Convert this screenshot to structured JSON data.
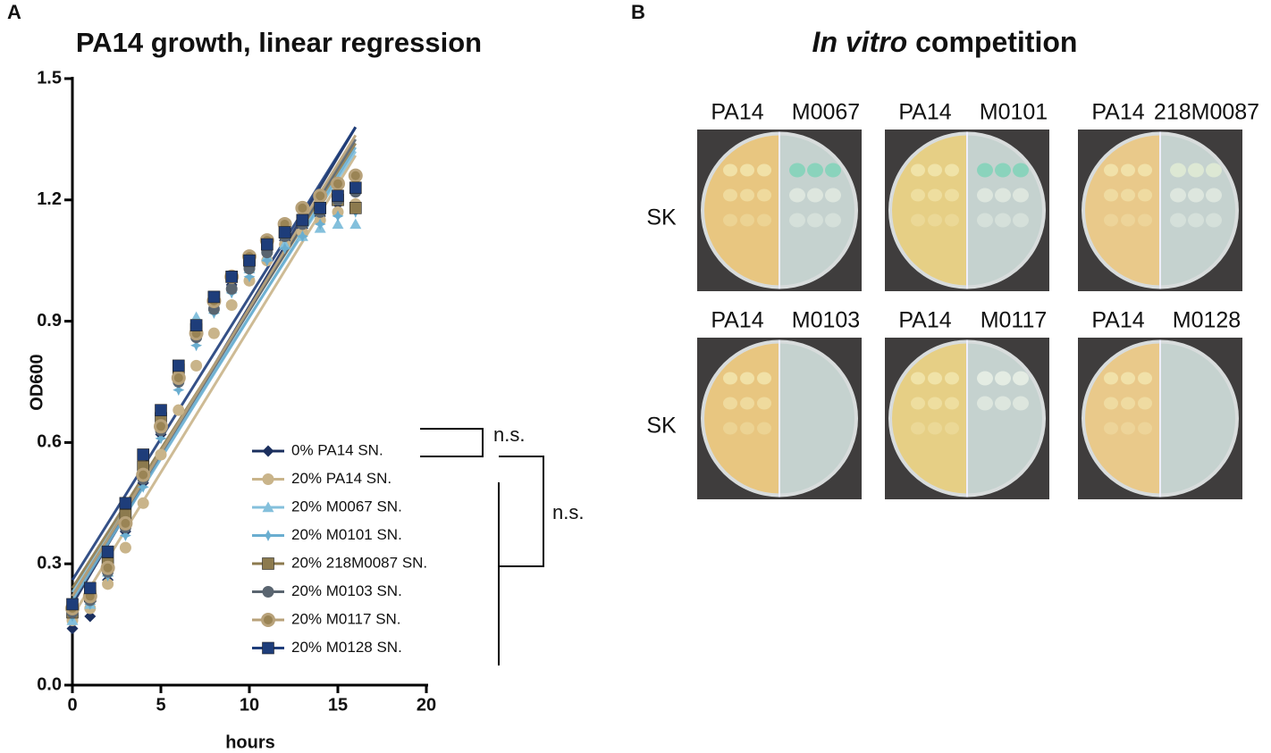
{
  "chart_data": {
    "type": "scatter",
    "panel_label": "A",
    "title": "PA14 growth, linear regression",
    "xlabel": "hours",
    "ylabel": "OD600",
    "x": [
      0,
      1,
      2,
      3,
      4,
      5,
      6,
      7,
      8,
      9,
      10,
      11,
      12,
      13,
      14,
      15,
      16
    ],
    "xlim": [
      0,
      20
    ],
    "xticks": [
      0,
      5,
      10,
      15,
      20
    ],
    "ylim": [
      0,
      1.5
    ],
    "yticks": [
      {
        "value": 0,
        "label": "0.0"
      },
      0.3,
      0.6,
      0.9,
      1.2,
      1.5
    ],
    "series": [
      {
        "name": "0% PA14 SN.",
        "color": "#1b2f5e",
        "marker": "diamond",
        "values": [
          0.14,
          0.17,
          0.26,
          0.38,
          0.5,
          0.62,
          0.75,
          0.87,
          0.94,
          0.99,
          1.03,
          1.07,
          1.1,
          1.13,
          1.16,
          1.19,
          1.22
        ],
        "fit": {
          "x": [
            0,
            16
          ],
          "y": [
            0.2,
            1.38
          ]
        }
      },
      {
        "name": "20% PA14 SN.",
        "color": "#c9b48a",
        "marker": "circle",
        "values": [
          0.16,
          0.19,
          0.25,
          0.34,
          0.45,
          0.57,
          0.68,
          0.79,
          0.87,
          0.94,
          1.0,
          1.05,
          1.09,
          1.12,
          1.15,
          1.17,
          1.19
        ],
        "fit": {
          "x": [
            0,
            16
          ],
          "y": [
            0.17,
            1.31
          ]
        }
      },
      {
        "name": "20% M0067 SN.",
        "color": "#84c0dc",
        "marker": "triangle",
        "values": [
          0.16,
          0.2,
          0.28,
          0.4,
          0.53,
          0.66,
          0.79,
          0.91,
          0.95,
          0.99,
          1.03,
          1.06,
          1.09,
          1.11,
          1.13,
          1.14,
          1.14
        ],
        "fit": {
          "x": [
            0,
            16
          ],
          "y": [
            0.23,
            1.32
          ]
        }
      },
      {
        "name": "20% M0101 SN.",
        "color": "#6aaed0",
        "marker": "star",
        "values": [
          0.17,
          0.2,
          0.27,
          0.37,
          0.49,
          0.61,
          0.73,
          0.84,
          0.92,
          0.97,
          1.01,
          1.05,
          1.08,
          1.11,
          1.14,
          1.16,
          1.17
        ],
        "fit": {
          "x": [
            0,
            16
          ],
          "y": [
            0.21,
            1.33
          ]
        }
      },
      {
        "name": "20% 218M0087 SN.",
        "color": "#8c7a4e",
        "marker": "square",
        "values": [
          0.18,
          0.22,
          0.3,
          0.42,
          0.54,
          0.66,
          0.78,
          0.88,
          0.96,
          1.01,
          1.05,
          1.09,
          1.12,
          1.15,
          1.18,
          1.2,
          1.18
        ],
        "fit": {
          "x": [
            0,
            16
          ],
          "y": [
            0.24,
            1.34
          ]
        }
      },
      {
        "name": "20% M0103 SN.",
        "color": "#5a6570",
        "marker": "circle",
        "values": [
          0.18,
          0.21,
          0.28,
          0.39,
          0.51,
          0.63,
          0.75,
          0.86,
          0.93,
          0.98,
          1.03,
          1.07,
          1.11,
          1.14,
          1.17,
          1.2,
          1.22
        ],
        "fit": {
          "x": [
            0,
            16
          ],
          "y": [
            0.22,
            1.35
          ]
        }
      },
      {
        "name": "20% M0117 SN.",
        "color": "#b8a27a",
        "marker": "ring",
        "values": [
          0.19,
          0.22,
          0.29,
          0.4,
          0.52,
          0.64,
          0.76,
          0.87,
          0.95,
          1.01,
          1.06,
          1.1,
          1.14,
          1.18,
          1.21,
          1.24,
          1.26
        ],
        "fit": {
          "x": [
            0,
            16
          ],
          "y": [
            0.22,
            1.36
          ]
        }
      },
      {
        "name": "20% M0128 SN.",
        "color": "#1e3d7a",
        "marker": "square",
        "values": [
          0.2,
          0.24,
          0.33,
          0.45,
          0.57,
          0.68,
          0.79,
          0.89,
          0.96,
          1.01,
          1.05,
          1.09,
          1.12,
          1.15,
          1.18,
          1.21,
          1.23
        ],
        "fit": {
          "x": [
            0,
            16
          ],
          "y": [
            0.26,
            1.38
          ]
        }
      }
    ],
    "annotations": [
      "n.s.",
      "n.s."
    ]
  },
  "panel_b": {
    "label": "B",
    "title": [
      "In vitro",
      "competition"
    ],
    "rows": [
      {
        "label": "SK",
        "plates": [
          [
            "PA14",
            "M0067"
          ],
          [
            "PA14",
            "M0101"
          ],
          [
            "PA14",
            "218M0087"
          ]
        ]
      },
      {
        "label": "SK",
        "plates": [
          [
            "PA14",
            "M0103"
          ],
          [
            "PA14",
            "M0117"
          ],
          [
            "PA14",
            "M0128"
          ]
        ]
      }
    ]
  }
}
